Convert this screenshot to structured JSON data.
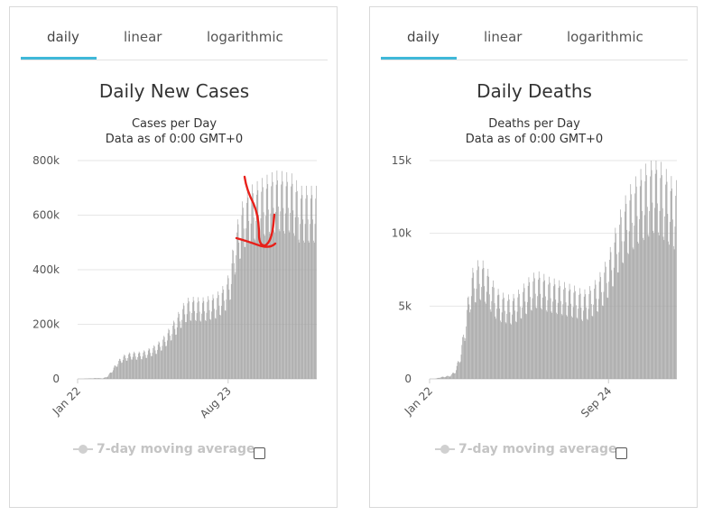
{
  "tabs": [
    "daily",
    "linear",
    "logarithmic"
  ],
  "legend": {
    "label": "7-day moving average"
  },
  "colors": {
    "bar": "#a3a3a3",
    "accent": "#3fb8d9",
    "grid": "#e6e6e6",
    "annotation": "#e8201a"
  },
  "chart_data": [
    {
      "type": "bar",
      "title": "Daily New Cases",
      "subtitle": "Cases per Day",
      "subtitle2": "Data as of 0:00 GMT+0",
      "xlabel": "",
      "ylabel": "",
      "ylim": [
        0,
        800000
      ],
      "yticks": [
        0,
        200000,
        400000,
        600000,
        800000
      ],
      "ytick_labels": [
        "0",
        "200k",
        "400k",
        "600k",
        "800k"
      ],
      "x_start": "Jan 22",
      "xticks": [
        "Jan 22",
        "Aug 23"
      ],
      "xtick_days": [
        0,
        214
      ],
      "total_days": 340,
      "grid": true,
      "legend": "bottom",
      "weekly_amplitude": 0.18,
      "values_weekly": [
        0,
        0,
        1500,
        2000,
        3000,
        1500,
        8000,
        30000,
        55000,
        72000,
        80000,
        85000,
        84000,
        86000,
        92000,
        100000,
        110000,
        125000,
        145000,
        170000,
        195000,
        225000,
        250000,
        255000,
        255000,
        252000,
        255000,
        260000,
        265000,
        280000,
        300000,
        350000,
        470000,
        530000,
        580000,
        600000,
        610000,
        620000,
        630000,
        640000,
        645000,
        650000,
        640000,
        645000,
        630000,
        600000,
        600000,
        600000,
        600000
      ]
    },
    {
      "type": "bar",
      "title": "Daily Deaths",
      "subtitle": "Deaths per Day",
      "subtitle2": "Data as of 0:00 GMT+0",
      "xlabel": "",
      "ylabel": "",
      "ylim": [
        0,
        15000
      ],
      "yticks": [
        0,
        5000,
        10000,
        15000
      ],
      "ytick_labels": [
        "0",
        "5k",
        "10k",
        "15k"
      ],
      "x_start": "Jan 22",
      "xticks": [
        "Jan 22",
        "Sep 24"
      ],
      "xtick_days": [
        0,
        246
      ],
      "total_days": 340,
      "grid": true,
      "legend": "bottom",
      "weekly_amplitude": 0.22,
      "values_weekly": [
        0,
        0,
        100,
        150,
        200,
        500,
        1500,
        3500,
        6000,
        6600,
        6800,
        6500,
        5800,
        5200,
        4900,
        4800,
        4700,
        4900,
        5200,
        5600,
        5900,
        6100,
        6000,
        5800,
        5700,
        5600,
        5500,
        5400,
        5300,
        5200,
        5000,
        5100,
        5400,
        5800,
        6300,
        7000,
        8000,
        9200,
        10000,
        10800,
        11200,
        11700,
        12000,
        12300,
        12600,
        12400,
        12000,
        11600,
        11200
      ]
    }
  ]
}
